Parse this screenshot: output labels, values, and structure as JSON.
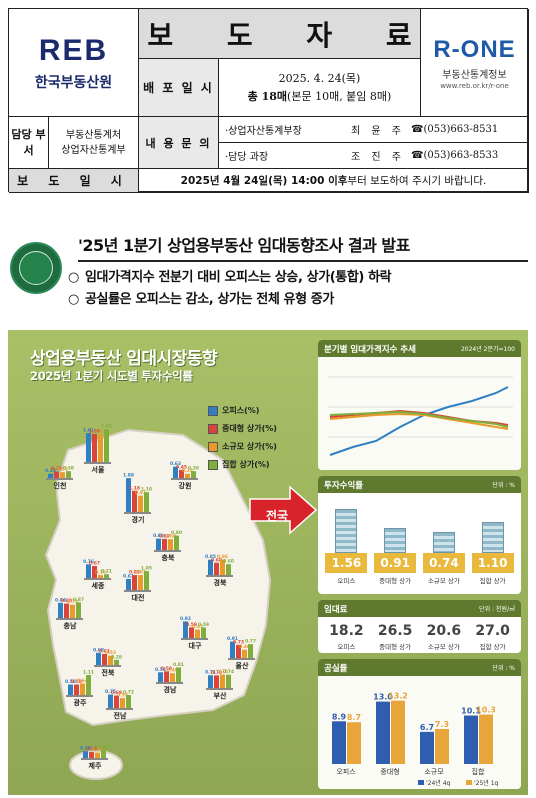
{
  "header": {
    "org_logo_text": "REB",
    "org_name": "한국부동산원",
    "title": "보 도 자 료",
    "right_logo": "R-ONE",
    "right_logo_sub": "부동산통계정보",
    "right_logo_url": "www.reb.or.kr/r-one",
    "distribution_label": "배 포 일 시",
    "distribution_date": "2025. 4. 24(목)",
    "distribution_pages_bold": "총 18매",
    "distribution_pages": "(본문 10매, 붙임 8매)",
    "dept_label": "담당 부서",
    "dept_value_1": "부동산통계처",
    "dept_value_2": "상업자산통계부",
    "contact_label": "내 용 문 의",
    "contacts": [
      {
        "role": "·상업자산통계부장",
        "name": "최 윤 주",
        "tel": "☎(053)663-8531"
      },
      {
        "role": "·담당 과장",
        "name": "조 진 주",
        "tel": "☎(053)663-8533"
      }
    ],
    "release_label": "보 도 일 시",
    "release_bold": "2025년 4월 24일(목) 14:00 이후",
    "release_rest": "부터 보도하여 주시기 바랍니다."
  },
  "headline": {
    "title": "'25년 1분기 상업용부동산 임대동향조사 결과 발표",
    "bullets": [
      "임대가격지수 전분기 대비 오피스는 상승, 상가(통합) 하락",
      "공실률은 오피스는 감소, 상가는 전체 유형 증가"
    ]
  },
  "infographic": {
    "title": "상업용부동산 임대시장동향",
    "subtitle": "2025년 1분기 시도별 투자수익률",
    "arrow_label": "전국",
    "legend": [
      {
        "label": "오피스(%)",
        "color": "#2f7fc2"
      },
      {
        "label": "중대형 상가(%)",
        "color": "#d9453b"
      },
      {
        "label": "소규모 상가(%)",
        "color": "#e89a2b"
      },
      {
        "label": "집합 상가(%)",
        "color": "#7fae3c"
      }
    ],
    "regions": [
      {
        "name": "인천",
        "values": [
          0.24,
          0.35,
          0.32,
          0.38
        ]
      },
      {
        "name": "서울",
        "values": [
          1.61,
          1.56,
          1.52,
          1.82
        ]
      },
      {
        "name": "강원",
        "values": [
          0.63,
          0.45,
          0.24,
          0.38
        ]
      },
      {
        "name": "경기",
        "values": [
          1.88,
          1.18,
          0.91,
          1.1
        ]
      },
      {
        "name": "충북",
        "values": [
          0.63,
          0.62,
          0.6,
          0.8
        ]
      },
      {
        "name": "세종",
        "values": [
          0.76,
          0.67,
          0.16,
          0.21
        ]
      },
      {
        "name": "대전",
        "values": [
          0.61,
          0.83,
          0.83,
          1.05
        ]
      },
      {
        "name": "경북",
        "values": [
          0.85,
          0.68,
          0.86,
          0.6
        ]
      },
      {
        "name": "충남",
        "values": [
          0.84,
          0.8,
          0.74,
          0.87
        ]
      },
      {
        "name": "대구",
        "values": [
          0.92,
          0.59,
          0.47,
          0.59
        ]
      },
      {
        "name": "울산",
        "values": [
          0.91,
          0.73,
          0.46,
          0.77
        ]
      },
      {
        "name": "전북",
        "values": [
          0.68,
          0.61,
          0.52,
          0.28
        ]
      },
      {
        "name": "경남",
        "values": [
          0.54,
          0.59,
          0.49,
          0.81
        ]
      },
      {
        "name": "부산",
        "values": [
          0.71,
          0.7,
          0.75,
          0.74
        ]
      },
      {
        "name": "광주",
        "values": [
          0.58,
          0.58,
          0.64,
          1.11
        ]
      },
      {
        "name": "전남",
        "values": [
          0.75,
          0.69,
          0.55,
          0.72
        ]
      },
      {
        "name": "제주",
        "values": [
          0.38,
          0.33,
          0.3,
          0.45
        ]
      }
    ],
    "panels": {
      "price_index": {
        "title": "분기별 임대가격지수 추세",
        "note": "2024년 2분기=100"
      },
      "returns": {
        "title": "투자수익률",
        "unit": "단위 : %",
        "items": [
          {
            "label": "오피스",
            "value": "1.56"
          },
          {
            "label": "중대형 상가",
            "value": "0.91"
          },
          {
            "label": "소규모 상가",
            "value": "0.74"
          },
          {
            "label": "집합 상가",
            "value": "1.10"
          }
        ]
      },
      "rent": {
        "title": "임대료",
        "unit": "단위 : 천원/㎡",
        "items": [
          {
            "label": "오피스",
            "value": "18.2"
          },
          {
            "label": "중대형 상가",
            "value": "26.5"
          },
          {
            "label": "소규모 상가",
            "value": "20.6"
          },
          {
            "label": "집합 상가",
            "value": "27.0"
          }
        ]
      },
      "vacancy": {
        "title": "공실률",
        "unit": "단위 : %",
        "categories": [
          "오피스",
          "중대형",
          "소규모",
          "집합"
        ],
        "series": [
          {
            "name": "'24년 4q",
            "values": [
              8.9,
              13.0,
              6.7,
              10.1
            ],
            "color": "#2f5db0"
          },
          {
            "name": "'25년 1q",
            "values": [
              8.7,
              13.2,
              7.3,
              10.3
            ],
            "color": "#e8a53a"
          }
        ]
      }
    }
  }
}
